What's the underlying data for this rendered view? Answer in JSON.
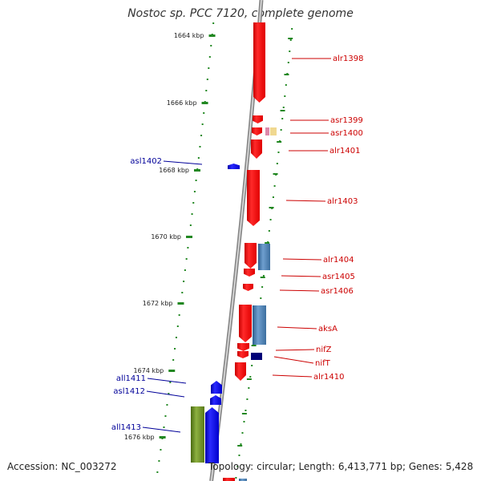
{
  "title": "Nostoc sp. PCC 7120, complete genome",
  "footer": {
    "accession_label": "Accession:",
    "accession": "NC_003272",
    "topology_label": "Topology:",
    "topology": "circular",
    "length_label": "Length:",
    "length": "6,413,771 bp",
    "genes_label": "Genes:",
    "genes": "5,428"
  },
  "ruler_ticks": [
    {
      "label": "1664 kbp"
    },
    {
      "label": "1666 kbp"
    },
    {
      "label": "1668 kbp"
    },
    {
      "label": "1670 kbp"
    },
    {
      "label": "1672 kbp"
    },
    {
      "label": "1674 kbp"
    },
    {
      "label": "1676 kbp"
    }
  ],
  "genes_forward": [
    {
      "name": "alr1398"
    },
    {
      "name": "asr1399"
    },
    {
      "name": "asr1400"
    },
    {
      "name": "alr1401"
    },
    {
      "name": "alr1403"
    },
    {
      "name": "alr1404"
    },
    {
      "name": "asr1405"
    },
    {
      "name": "asr1406"
    },
    {
      "name": "aksA"
    },
    {
      "name": "nifZ"
    },
    {
      "name": "nifT"
    },
    {
      "name": "alr1410"
    }
  ],
  "genes_reverse": [
    {
      "name": "asl1402"
    },
    {
      "name": "all1411"
    },
    {
      "name": "asl1412"
    },
    {
      "name": "all1413"
    }
  ],
  "colors": {
    "forward_gene": "#ee1111",
    "reverse_gene": "#0000ee",
    "forward_label": "#cc0000",
    "reverse_label": "#000099",
    "ruler": "#228822",
    "backbone": "#999999",
    "steelblue_feature": "#4477aa",
    "navy_feature": "#000077",
    "olive_feature": "#6b8e23"
  }
}
